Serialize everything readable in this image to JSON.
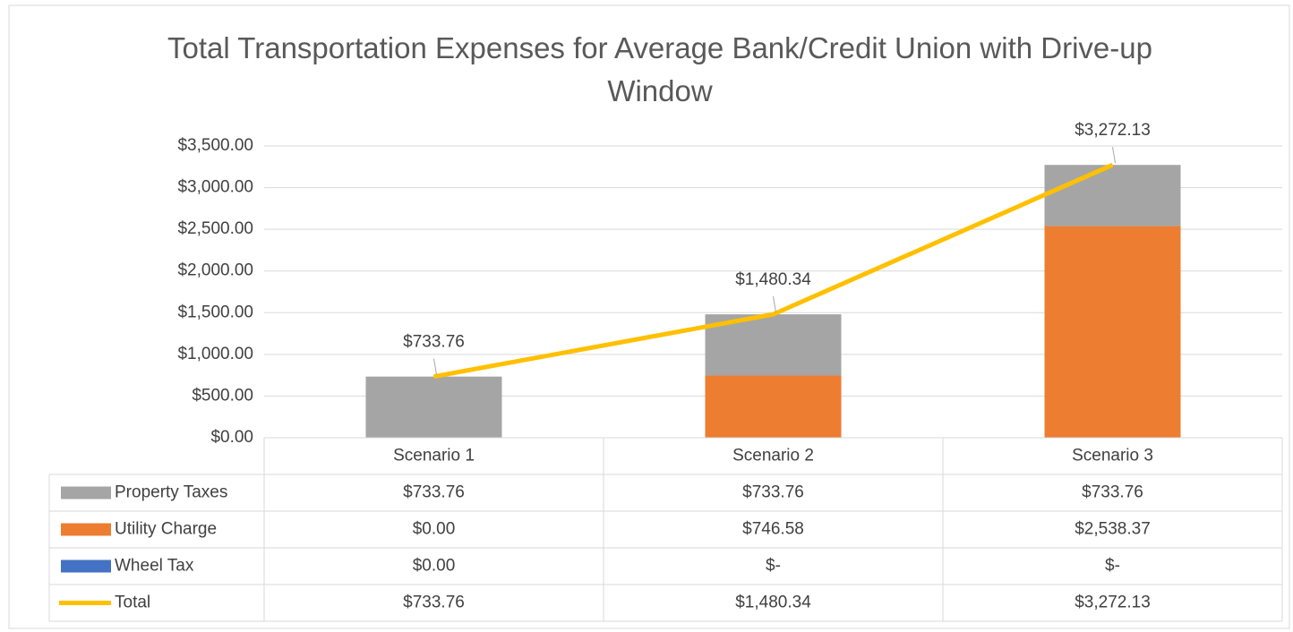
{
  "chart_data": {
    "type": "bar",
    "stacked": true,
    "title": "Total Transportation Expenses for Average Bank/Credit Union with Drive-up Window",
    "categories": [
      "Scenario 1",
      "Scenario 2",
      "Scenario 3"
    ],
    "series": [
      {
        "name": "Property Taxes",
        "color": "#a5a5a5",
        "values": [
          733.76,
          733.76,
          733.76
        ],
        "value_labels": [
          "$733.76",
          "$733.76",
          "$733.76"
        ]
      },
      {
        "name": "Utility Charge",
        "color": "#ed7d31",
        "values": [
          0,
          746.58,
          2538.37
        ],
        "value_labels": [
          "$0.00",
          "$746.58",
          "$2,538.37"
        ]
      },
      {
        "name": "Wheel Tax",
        "color": "#4472c4",
        "values": [
          0,
          0,
          0
        ],
        "value_labels": [
          "$0.00",
          "$-",
          "$-"
        ]
      },
      {
        "name": "Total",
        "color": "#ffc000",
        "type": "line",
        "values": [
          733.76,
          1480.34,
          3272.13
        ],
        "value_labels": [
          "$733.76",
          "$1,480.34",
          "$3,272.13"
        ]
      }
    ],
    "ylim": [
      0,
      3500
    ],
    "yticks": [
      {
        "value": 0,
        "label": "$0.00"
      },
      {
        "value": 500,
        "label": "$500.00"
      },
      {
        "value": 1000,
        "label": "$1,000.00"
      },
      {
        "value": 1500,
        "label": "$1,500.00"
      },
      {
        "value": 2000,
        "label": "$2,000.00"
      },
      {
        "value": 2500,
        "label": "$2,500.00"
      },
      {
        "value": 3000,
        "label": "$3,000.00"
      },
      {
        "value": 3500,
        "label": "$3,500.00"
      }
    ],
    "grid": true,
    "data_table": true
  }
}
